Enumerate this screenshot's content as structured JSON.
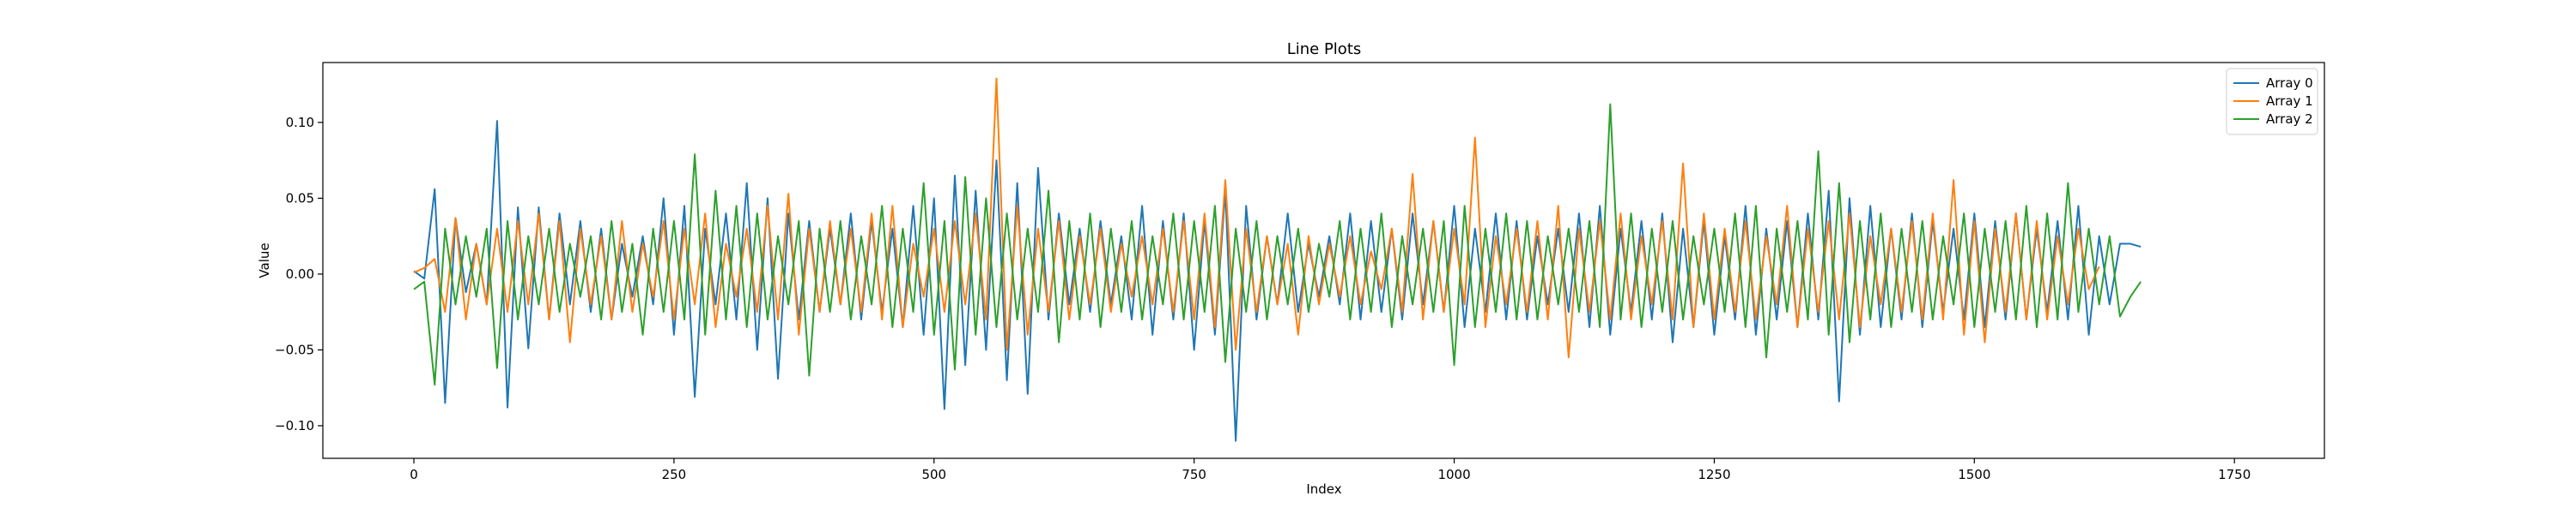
{
  "chart_data": {
    "type": "line",
    "title": "Line Plots",
    "xlabel": "Index",
    "ylabel": "Value",
    "xlim": [
      -87.5,
      1836.5
    ],
    "ylim": [
      -0.1215,
      0.1395
    ],
    "x_ticks": [
      0,
      250,
      500,
      750,
      1000,
      1250,
      1500,
      1750
    ],
    "x_tick_labels": [
      "0",
      "250",
      "500",
      "750",
      "1000",
      "1250",
      "1500",
      "1750"
    ],
    "y_ticks": [
      -0.1,
      -0.05,
      0.0,
      0.05,
      0.1
    ],
    "y_tick_labels": [
      "−0.10",
      "−0.05",
      "0.00",
      "0.05",
      "0.10"
    ],
    "grid": false,
    "legend_position": "top-right",
    "series": [
      {
        "name": "Array 0",
        "color": "#1f77b4",
        "x_start": 0,
        "x_step": 10,
        "values": [
          0.002,
          -0.003,
          0.056,
          -0.085,
          0.037,
          -0.012,
          0.02,
          -0.02,
          0.101,
          -0.088,
          0.044,
          -0.049,
          0.044,
          -0.03,
          0.04,
          -0.02,
          0.035,
          -0.025,
          0.03,
          -0.03,
          0.02,
          -0.015,
          0.025,
          -0.02,
          0.05,
          -0.04,
          0.045,
          -0.081,
          0.03,
          -0.02,
          0.04,
          -0.03,
          0.06,
          -0.05,
          0.05,
          -0.069,
          0.04,
          -0.03,
          0.035,
          -0.025,
          0.03,
          -0.02,
          0.04,
          -0.03,
          0.035,
          -0.025,
          0.03,
          -0.035,
          0.045,
          -0.04,
          0.05,
          -0.089,
          0.065,
          -0.06,
          0.055,
          -0.05,
          0.075,
          -0.07,
          0.06,
          -0.079,
          0.07,
          -0.03,
          0.04,
          -0.02,
          0.03,
          -0.025,
          0.035,
          -0.02,
          0.025,
          -0.03,
          0.045,
          -0.04,
          0.035,
          -0.03,
          0.04,
          -0.05,
          0.035,
          -0.04,
          0.055,
          -0.11,
          0.045,
          -0.03,
          0.025,
          -0.02,
          0.04,
          -0.025,
          0.02,
          -0.015,
          0.025,
          -0.02,
          0.04,
          -0.03,
          0.035,
          -0.025,
          0.03,
          -0.03,
          0.04,
          -0.02,
          0.035,
          -0.025,
          0.045,
          -0.035,
          0.03,
          -0.025,
          0.04,
          -0.03,
          0.035,
          -0.03,
          0.025,
          -0.02,
          0.03,
          -0.025,
          0.04,
          -0.035,
          0.045,
          -0.04,
          0.03,
          -0.025,
          0.035,
          -0.03,
          0.04,
          -0.045,
          0.03,
          -0.035,
          0.035,
          -0.04,
          0.025,
          -0.03,
          0.045,
          -0.04,
          0.03,
          -0.03,
          0.035,
          -0.035,
          0.04,
          -0.03,
          0.055,
          -0.084,
          0.05,
          -0.04,
          0.045,
          -0.035,
          0.03,
          -0.03,
          0.04,
          -0.035,
          0.035,
          -0.025,
          0.03,
          -0.03,
          0.04,
          -0.035,
          0.035,
          -0.03,
          0.04,
          -0.03,
          0.03,
          -0.025,
          0.035,
          -0.03,
          0.045,
          -0.04,
          0.025,
          -0.02,
          0.02,
          0.02,
          0.018
        ]
      },
      {
        "name": "Array 1",
        "color": "#ff7f0e",
        "x_start": 0,
        "x_step": 10,
        "values": [
          0.001,
          0.004,
          0.01,
          -0.025,
          0.037,
          -0.03,
          0.02,
          -0.02,
          0.03,
          -0.025,
          0.035,
          -0.02,
          0.04,
          -0.03,
          0.035,
          -0.045,
          0.03,
          -0.02,
          0.025,
          -0.03,
          0.035,
          -0.025,
          0.02,
          -0.015,
          0.035,
          -0.03,
          0.03,
          -0.02,
          0.04,
          -0.035,
          0.02,
          -0.015,
          0.03,
          -0.025,
          0.045,
          -0.03,
          0.053,
          -0.04,
          0.03,
          -0.025,
          0.035,
          -0.02,
          0.03,
          -0.025,
          0.04,
          -0.03,
          0.045,
          -0.035,
          0.02,
          -0.015,
          0.03,
          -0.025,
          0.035,
          -0.02,
          0.04,
          -0.03,
          0.129,
          -0.05,
          0.045,
          -0.04,
          0.03,
          -0.025,
          0.035,
          -0.03,
          0.025,
          -0.02,
          0.03,
          -0.025,
          0.02,
          -0.015,
          0.025,
          -0.02,
          0.03,
          -0.025,
          0.035,
          -0.03,
          0.04,
          -0.035,
          0.062,
          -0.05,
          0.03,
          -0.025,
          0.025,
          -0.02,
          0.02,
          -0.04,
          0.025,
          -0.02,
          0.02,
          -0.015,
          0.025,
          -0.02,
          0.015,
          -0.01,
          0.03,
          -0.025,
          0.066,
          -0.03,
          0.035,
          -0.025,
          0.03,
          -0.02,
          0.09,
          -0.035,
          0.025,
          -0.02,
          0.03,
          -0.025,
          0.035,
          -0.03,
          0.045,
          -0.055,
          0.03,
          -0.025,
          0.035,
          -0.03,
          0.04,
          -0.03,
          0.025,
          -0.02,
          0.035,
          -0.03,
          0.073,
          -0.035,
          0.04,
          -0.03,
          0.03,
          -0.025,
          0.035,
          -0.03,
          0.025,
          -0.02,
          0.045,
          -0.035,
          0.03,
          -0.025,
          0.035,
          -0.03,
          0.04,
          -0.035,
          0.025,
          -0.02,
          0.03,
          -0.025,
          0.035,
          -0.03,
          0.04,
          -0.03,
          0.062,
          -0.04,
          0.035,
          -0.045,
          0.03,
          -0.025,
          0.04,
          -0.03,
          0.035,
          -0.03,
          0.025,
          -0.02,
          0.03,
          -0.01,
          0.005
        ]
      },
      {
        "name": "Array 2",
        "color": "#2ca02c",
        "x_start": 0,
        "x_step": 10,
        "values": [
          -0.01,
          -0.005,
          -0.073,
          0.03,
          -0.02,
          0.025,
          -0.015,
          0.03,
          -0.062,
          0.035,
          -0.03,
          0.025,
          -0.02,
          0.03,
          -0.025,
          0.02,
          -0.015,
          0.025,
          -0.03,
          0.035,
          -0.025,
          0.02,
          -0.04,
          0.03,
          -0.025,
          0.035,
          -0.03,
          0.079,
          -0.04,
          0.055,
          -0.03,
          0.045,
          -0.035,
          0.04,
          -0.03,
          0.025,
          -0.02,
          0.035,
          -0.067,
          0.03,
          -0.025,
          0.035,
          -0.03,
          0.025,
          -0.02,
          0.045,
          -0.035,
          0.03,
          -0.025,
          0.06,
          -0.04,
          0.035,
          -0.063,
          0.064,
          -0.04,
          0.05,
          -0.035,
          0.04,
          -0.03,
          0.03,
          -0.025,
          0.055,
          -0.045,
          0.035,
          -0.03,
          0.04,
          -0.035,
          0.03,
          -0.025,
          0.035,
          -0.03,
          0.025,
          -0.02,
          0.04,
          -0.03,
          0.035,
          -0.025,
          0.045,
          -0.058,
          0.03,
          -0.025,
          0.035,
          -0.03,
          0.025,
          -0.02,
          0.03,
          -0.025,
          0.02,
          -0.015,
          0.035,
          -0.03,
          0.03,
          -0.025,
          0.04,
          -0.035,
          0.025,
          -0.02,
          0.03,
          -0.025,
          0.035,
          -0.06,
          0.045,
          -0.035,
          0.03,
          -0.025,
          0.04,
          -0.03,
          0.035,
          -0.03,
          0.025,
          -0.02,
          0.03,
          -0.025,
          0.035,
          -0.035,
          0.112,
          -0.03,
          0.04,
          -0.035,
          0.03,
          -0.025,
          0.035,
          -0.03,
          0.025,
          -0.02,
          0.03,
          -0.025,
          0.04,
          -0.035,
          0.045,
          -0.055,
          0.03,
          -0.025,
          0.035,
          -0.03,
          0.081,
          -0.04,
          0.06,
          -0.045,
          0.035,
          -0.03,
          0.04,
          -0.035,
          0.03,
          -0.025,
          0.035,
          -0.03,
          0.025,
          -0.02,
          0.04,
          -0.035,
          0.03,
          -0.025,
          0.035,
          -0.03,
          0.045,
          -0.035,
          0.04,
          -0.03,
          0.06,
          -0.025,
          0.03,
          -0.02,
          0.025,
          -0.028,
          -0.015,
          -0.005
        ]
      }
    ]
  }
}
